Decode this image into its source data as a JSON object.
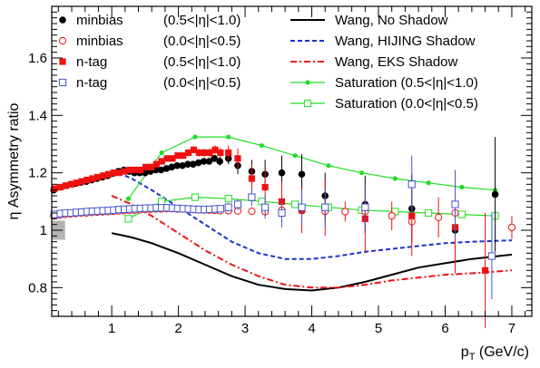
{
  "chart_data": {
    "type": "scatter",
    "title": "",
    "xlabel": "p",
    "xlabel_sub": "T",
    "xlabel_unit": " (GeV/c)",
    "ylabel": "η Asymmetry ratio",
    "xlim": [
      0.1,
      7.3
    ],
    "ylim": [
      0.7,
      1.78
    ],
    "x_tick_labels": [
      "1",
      "2",
      "3",
      "4",
      "5",
      "6",
      "7"
    ],
    "x_tick_values": [
      1,
      2,
      3,
      4,
      5,
      6,
      7
    ],
    "y_tick_labels": [
      "0.8",
      "1",
      "1.2",
      "1.4",
      "1.6"
    ],
    "y_tick_values": [
      0.8,
      1.0,
      1.2,
      1.4,
      1.6
    ],
    "grid": false,
    "legend_placement": "top",
    "colors": {
      "black": "#000000",
      "red": "#ee1111",
      "blue": "#1a33cc",
      "green": "#22dd22",
      "band": "#b3b3b3"
    },
    "sys_band": {
      "x": [
        0.1,
        0.3
      ],
      "y": [
        0.967,
        1.033
      ]
    },
    "series": [
      {
        "name": "minbias",
        "cut": "(0.5<|η|<1.0)",
        "marker": "filled-circle",
        "color": "#000000",
        "x": [
          0.13,
          0.22,
          0.3,
          0.38,
          0.46,
          0.54,
          0.62,
          0.7,
          0.78,
          0.86,
          0.94,
          1.02,
          1.1,
          1.18,
          1.26,
          1.34,
          1.42,
          1.5,
          1.58,
          1.66,
          1.74,
          1.82,
          1.9,
          1.98,
          2.06,
          2.14,
          2.22,
          2.3,
          2.38,
          2.46,
          2.54,
          2.62,
          2.75,
          2.89,
          3.1,
          3.3,
          3.55,
          3.85,
          4.2,
          4.8,
          5.5,
          6.15,
          6.75
        ],
        "y": [
          1.14,
          1.15,
          1.155,
          1.16,
          1.163,
          1.167,
          1.17,
          1.175,
          1.18,
          1.185,
          1.19,
          1.198,
          1.205,
          1.21,
          1.205,
          1.2,
          1.2,
          1.2,
          1.205,
          1.21,
          1.21,
          1.215,
          1.22,
          1.225,
          1.225,
          1.23,
          1.23,
          1.235,
          1.24,
          1.24,
          1.25,
          1.24,
          1.25,
          1.225,
          1.205,
          1.195,
          1.2,
          1.195,
          1.12,
          1.09,
          1.075,
          1.0,
          1.125
        ],
        "err": [
          0.004,
          0.004,
          0.004,
          0.004,
          0.004,
          0.004,
          0.004,
          0.004,
          0.004,
          0.005,
          0.005,
          0.005,
          0.005,
          0.005,
          0.005,
          0.005,
          0.005,
          0.005,
          0.006,
          0.006,
          0.006,
          0.006,
          0.007,
          0.007,
          0.007,
          0.008,
          0.008,
          0.009,
          0.009,
          0.01,
          0.012,
          0.015,
          0.02,
          0.03,
          0.04,
          0.05,
          0.06,
          0.07,
          0.08,
          0.1,
          0.12,
          0.15,
          0.2
        ]
      },
      {
        "name": "minbias",
        "cut": "(0.0<|η|<0.5)",
        "marker": "open-circle",
        "color": "#ee1111",
        "x": [
          0.13,
          0.22,
          0.3,
          0.38,
          0.46,
          0.54,
          0.62,
          0.7,
          0.78,
          0.86,
          0.94,
          1.02,
          1.1,
          1.18,
          1.26,
          1.34,
          1.42,
          1.5,
          1.58,
          1.66,
          1.74,
          1.82,
          1.9,
          1.98,
          2.06,
          2.14,
          2.22,
          2.3,
          2.38,
          2.46,
          2.54,
          2.62,
          2.75,
          2.89,
          3.1,
          3.3,
          3.55,
          3.85,
          4.2,
          4.5,
          4.8,
          5.2,
          5.5,
          5.9,
          6.15,
          7.0
        ],
        "y": [
          1.05,
          1.053,
          1.055,
          1.057,
          1.058,
          1.06,
          1.06,
          1.062,
          1.063,
          1.064,
          1.065,
          1.066,
          1.067,
          1.068,
          1.069,
          1.07,
          1.071,
          1.072,
          1.073,
          1.074,
          1.074,
          1.075,
          1.075,
          1.074,
          1.074,
          1.073,
          1.072,
          1.071,
          1.07,
          1.07,
          1.069,
          1.068,
          1.068,
          1.067,
          1.066,
          1.065,
          1.07,
          1.068,
          1.066,
          1.065,
          1.065,
          1.05,
          1.03,
          1.045,
          1.06,
          1.01
        ],
        "err": [
          0.003,
          0.003,
          0.003,
          0.003,
          0.003,
          0.003,
          0.003,
          0.003,
          0.003,
          0.003,
          0.003,
          0.003,
          0.003,
          0.004,
          0.004,
          0.004,
          0.004,
          0.004,
          0.004,
          0.004,
          0.004,
          0.005,
          0.005,
          0.005,
          0.005,
          0.005,
          0.006,
          0.006,
          0.006,
          0.007,
          0.007,
          0.008,
          0.009,
          0.01,
          0.012,
          0.015,
          0.02,
          0.025,
          0.03,
          0.035,
          0.04,
          0.05,
          0.06,
          0.07,
          0.08,
          0.04
        ]
      },
      {
        "name": "n-tag",
        "cut": "(0.5<|η|<1.0)",
        "marker": "filled-square",
        "color": "#ee1111",
        "x": [
          0.14,
          0.23,
          0.31,
          0.39,
          0.47,
          0.55,
          0.63,
          0.71,
          0.79,
          0.87,
          0.95,
          1.03,
          1.11,
          1.19,
          1.27,
          1.35,
          1.43,
          1.51,
          1.59,
          1.67,
          1.75,
          1.83,
          1.91,
          1.99,
          2.07,
          2.15,
          2.23,
          2.31,
          2.39,
          2.47,
          2.55,
          2.63,
          2.75,
          2.89,
          3.1,
          3.3,
          3.55,
          3.85,
          4.2,
          4.8,
          5.5,
          6.15,
          6.6
        ],
        "y": [
          1.145,
          1.15,
          1.155,
          1.16,
          1.165,
          1.17,
          1.175,
          1.18,
          1.185,
          1.19,
          1.195,
          1.2,
          1.2,
          1.205,
          1.21,
          1.21,
          1.21,
          1.22,
          1.22,
          1.23,
          1.24,
          1.25,
          1.25,
          1.26,
          1.26,
          1.27,
          1.28,
          1.27,
          1.27,
          1.27,
          1.28,
          1.27,
          1.27,
          1.25,
          1.18,
          1.15,
          1.1,
          1.07,
          1.08,
          1.04,
          1.05,
          1.01,
          0.86
        ],
        "err": [
          0.005,
          0.005,
          0.005,
          0.005,
          0.005,
          0.005,
          0.005,
          0.006,
          0.006,
          0.006,
          0.006,
          0.006,
          0.007,
          0.007,
          0.007,
          0.007,
          0.008,
          0.008,
          0.008,
          0.009,
          0.009,
          0.01,
          0.01,
          0.011,
          0.011,
          0.012,
          0.012,
          0.013,
          0.014,
          0.015,
          0.016,
          0.018,
          0.025,
          0.035,
          0.05,
          0.06,
          0.07,
          0.08,
          0.1,
          0.12,
          0.14,
          0.16,
          0.2
        ]
      },
      {
        "name": "n-tag",
        "cut": "(0.0<|η|<0.5)",
        "marker": "open-square",
        "color": "#4455cc",
        "x": [
          0.14,
          0.23,
          0.31,
          0.39,
          0.47,
          0.55,
          0.63,
          0.71,
          0.79,
          0.87,
          0.95,
          1.03,
          1.11,
          1.19,
          1.27,
          1.35,
          1.43,
          1.51,
          1.59,
          1.67,
          1.75,
          1.83,
          1.91,
          1.99,
          2.07,
          2.15,
          2.23,
          2.31,
          2.39,
          2.47,
          2.55,
          2.63,
          2.75,
          2.89,
          3.1,
          3.3,
          3.55,
          3.85,
          4.2,
          4.8,
          5.5,
          6.15,
          6.7
        ],
        "y": [
          1.055,
          1.058,
          1.06,
          1.06,
          1.062,
          1.063,
          1.065,
          1.066,
          1.067,
          1.068,
          1.069,
          1.07,
          1.072,
          1.073,
          1.074,
          1.075,
          1.076,
          1.077,
          1.077,
          1.078,
          1.078,
          1.078,
          1.077,
          1.076,
          1.075,
          1.074,
          1.073,
          1.072,
          1.072,
          1.073,
          1.074,
          1.075,
          1.08,
          1.09,
          1.115,
          1.08,
          1.06,
          1.08,
          1.08,
          1.08,
          1.16,
          1.09,
          0.91
        ],
        "err": [
          0.004,
          0.004,
          0.004,
          0.004,
          0.004,
          0.004,
          0.004,
          0.004,
          0.004,
          0.004,
          0.004,
          0.005,
          0.005,
          0.005,
          0.005,
          0.005,
          0.005,
          0.005,
          0.006,
          0.006,
          0.006,
          0.006,
          0.007,
          0.007,
          0.007,
          0.008,
          0.008,
          0.009,
          0.009,
          0.01,
          0.011,
          0.012,
          0.015,
          0.02,
          0.03,
          0.04,
          0.05,
          0.06,
          0.07,
          0.08,
          0.1,
          0.12,
          0.15
        ]
      },
      {
        "name": "Wang, No Shadow",
        "marker": "line",
        "style": "solid",
        "color": "#000000",
        "x": [
          1.0,
          1.3,
          1.6,
          2.0,
          2.4,
          2.8,
          3.2,
          3.6,
          4.0,
          4.4,
          4.8,
          5.2,
          5.6,
          6.0,
          6.4,
          7.0
        ],
        "y": [
          0.99,
          0.975,
          0.955,
          0.92,
          0.88,
          0.84,
          0.81,
          0.795,
          0.79,
          0.8,
          0.82,
          0.845,
          0.87,
          0.885,
          0.9,
          0.915
        ]
      },
      {
        "name": "Wang, HIJING Shadow",
        "marker": "line",
        "style": "dashed",
        "color": "#1a33cc",
        "x": [
          1.0,
          1.3,
          1.6,
          2.0,
          2.4,
          2.8,
          3.2,
          3.6,
          4.0,
          4.4,
          4.8,
          5.2,
          5.6,
          6.0,
          6.4,
          7.0
        ],
        "y": [
          1.21,
          1.18,
          1.14,
          1.08,
          1.02,
          0.96,
          0.92,
          0.9,
          0.9,
          0.91,
          0.925,
          0.935,
          0.945,
          0.955,
          0.96,
          0.965
        ]
      },
      {
        "name": "Wang, EKS Shadow",
        "marker": "line",
        "style": "dashdot",
        "color": "#ee1111",
        "x": [
          1.0,
          1.3,
          1.6,
          2.0,
          2.4,
          2.8,
          3.2,
          3.6,
          4.0,
          4.4,
          4.8,
          5.2,
          5.6,
          6.0,
          6.4,
          7.0
        ],
        "y": [
          1.12,
          1.09,
          1.05,
          0.99,
          0.93,
          0.88,
          0.84,
          0.81,
          0.8,
          0.8,
          0.81,
          0.825,
          0.835,
          0.845,
          0.85,
          0.86
        ]
      },
      {
        "name": "Saturation",
        "cut": "(0.5<|η|<1.0)",
        "marker": "line-dot",
        "color": "#22dd22",
        "x": [
          1.25,
          1.75,
          2.25,
          2.75,
          3.25,
          3.75,
          4.25,
          4.75,
          5.25,
          5.75,
          6.25,
          6.75
        ],
        "y": [
          1.11,
          1.27,
          1.325,
          1.325,
          1.295,
          1.26,
          1.225,
          1.2,
          1.18,
          1.165,
          1.15,
          1.14
        ]
      },
      {
        "name": "Saturation",
        "cut": "(0.0<|η|<0.5)",
        "marker": "line-opensquare",
        "color": "#22dd22",
        "x": [
          1.25,
          1.75,
          2.25,
          2.75,
          3.25,
          3.75,
          4.25,
          4.75,
          5.25,
          5.75,
          6.25,
          6.75
        ],
        "y": [
          1.04,
          1.1,
          1.115,
          1.11,
          1.1,
          1.09,
          1.08,
          1.07,
          1.065,
          1.06,
          1.055,
          1.05
        ]
      }
    ]
  }
}
